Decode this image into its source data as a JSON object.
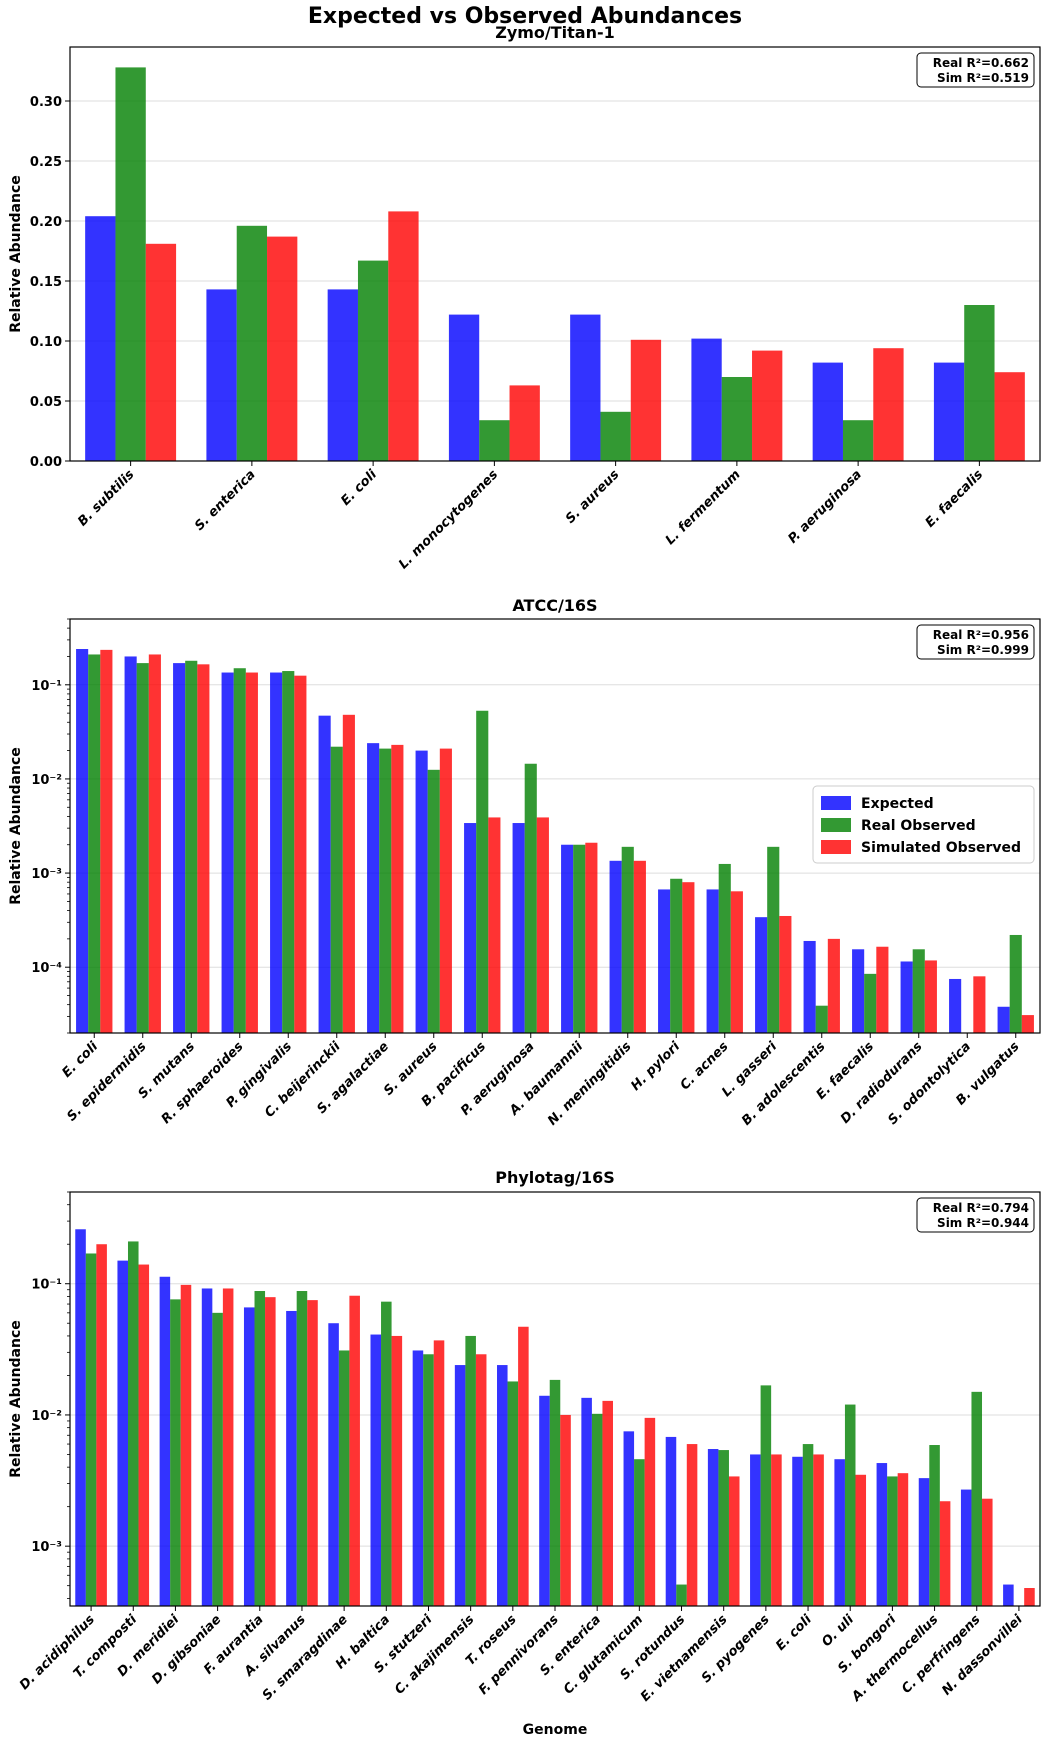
{
  "figure_title": "Expected vs Observed Abundances",
  "x_axis_label": "Genome",
  "legend": {
    "items": [
      {
        "label": "Expected",
        "color": "#0000ff"
      },
      {
        "label": "Real Observed",
        "color": "#008000"
      },
      {
        "label": "Simulated Observed",
        "color": "#ff0000"
      }
    ]
  },
  "chart_data": [
    {
      "type": "bar",
      "title": "Zymo/Titan-1",
      "ylabel": "Relative Abundance",
      "yscale": "linear",
      "ylim": [
        0,
        0.345
      ],
      "yticks": [
        0,
        0.05,
        0.1,
        0.15,
        0.2,
        0.25,
        0.3
      ],
      "ytick_labels": [
        "0.00",
        "0.05",
        "0.10",
        "0.15",
        "0.20",
        "0.25",
        "0.30"
      ],
      "r2_real": "Real R²=0.662",
      "r2_sim": "Sim R²=0.519",
      "categories": [
        "B. subtilis",
        "S. enterica",
        "E. coli",
        "L. monocytogenes",
        "S. aureus",
        "L. fermentum",
        "P. aeruginosa",
        "E. faecalis"
      ],
      "series": [
        {
          "name": "Expected",
          "values": [
            0.204,
            0.143,
            0.143,
            0.122,
            0.122,
            0.102,
            0.082,
            0.082
          ]
        },
        {
          "name": "Real Observed",
          "values": [
            0.328,
            0.196,
            0.167,
            0.034,
            0.041,
            0.07,
            0.034,
            0.13
          ]
        },
        {
          "name": "Simulated Observed",
          "values": [
            0.181,
            0.187,
            0.208,
            0.063,
            0.101,
            0.092,
            0.094,
            0.074
          ]
        }
      ]
    },
    {
      "type": "bar",
      "title": "ATCC/16S",
      "ylabel": "Relative Abundance",
      "yscale": "log",
      "ylim": [
        2e-05,
        0.5
      ],
      "yticks": [
        0.0001,
        0.001,
        0.01,
        0.1
      ],
      "ytick_labels": [
        "10⁻⁴",
        "10⁻³",
        "10⁻²",
        "10⁻¹"
      ],
      "r2_real": "Real R²=0.956",
      "r2_sim": "Sim R²=0.999",
      "categories": [
        "E. coli",
        "S. epidermidis",
        "S. mutans",
        "R. sphaeroides",
        "P. gingivalis",
        "C. beijerinckii",
        "S. agalactiae",
        "S. aureus",
        "B. pacificus",
        "P. aeruginosa",
        "A. baumannii",
        "N. meningitidis",
        "H. pylori",
        "C. acnes",
        "L. gasseri",
        "B. adolescentis",
        "E. faecalis",
        "D. radiodurans",
        "S. odontolytica",
        "B. vulgatus"
      ],
      "series": [
        {
          "name": "Expected",
          "values": [
            0.24,
            0.2,
            0.17,
            0.135,
            0.135,
            0.047,
            0.024,
            0.02,
            0.0034,
            0.0034,
            0.002,
            0.00135,
            0.00067,
            0.00067,
            0.00034,
            0.00019,
            0.000155,
            0.000115,
            7.5e-05,
            3.8e-05
          ]
        },
        {
          "name": "Real Observed",
          "values": [
            0.21,
            0.17,
            0.18,
            0.15,
            0.14,
            0.022,
            0.021,
            0.0125,
            0.053,
            0.0145,
            0.002,
            0.0019,
            0.00087,
            0.00125,
            0.0019,
            3.9e-05,
            8.5e-05,
            0.000155,
            null,
            0.00022
          ]
        },
        {
          "name": "Simulated Observed",
          "values": [
            0.235,
            0.21,
            0.165,
            0.135,
            0.125,
            0.048,
            0.023,
            0.021,
            0.0039,
            0.0039,
            0.0021,
            0.00135,
            0.0008,
            0.00064,
            0.00035,
            0.0002,
            0.000165,
            0.000118,
            8e-05,
            3.1e-05
          ]
        }
      ]
    },
    {
      "type": "bar",
      "title": "Phylotag/16S",
      "ylabel": "Relative Abundance",
      "xlabel": "Genome",
      "yscale": "log",
      "ylim": [
        0.00035,
        0.5
      ],
      "yticks": [
        0.001,
        0.01,
        0.1
      ],
      "ytick_labels": [
        "10⁻³",
        "10⁻²",
        "10⁻¹"
      ],
      "r2_real": "Real R²=0.794",
      "r2_sim": "Sim R²=0.944",
      "categories": [
        "D. acidiphilus",
        "T. composti",
        "D. meridiei",
        "D. gibsoniae",
        "F. aurantia",
        "A. silvanus",
        "S. smaragdinae",
        "H. baltica",
        "S. stutzeri",
        "C. akajimensis",
        "T. roseus",
        "F. pennivorans",
        "S. enterica",
        "C. glutamicum",
        "S. rotundus",
        "E. vietnamensis",
        "S. pyogenes",
        "E. coli",
        "O. uli",
        "S. bongori",
        "A. thermocellus",
        "C. perfringens",
        "N. dassonvillei"
      ],
      "series": [
        {
          "name": "Expected",
          "values": [
            0.26,
            0.15,
            0.113,
            0.092,
            0.066,
            0.062,
            0.05,
            0.041,
            0.031,
            0.024,
            0.024,
            0.014,
            0.0135,
            0.0075,
            0.0068,
            0.0055,
            0.005,
            0.0048,
            0.0046,
            0.0043,
            0.0033,
            0.0027,
            0.00051
          ]
        },
        {
          "name": "Real Observed",
          "values": [
            0.17,
            0.21,
            0.076,
            0.06,
            0.088,
            0.088,
            0.031,
            0.073,
            0.029,
            0.04,
            0.018,
            0.0185,
            0.0102,
            0.0046,
            0.00051,
            0.0054,
            0.0168,
            0.006,
            0.012,
            0.0034,
            0.0059,
            0.015,
            null
          ]
        },
        {
          "name": "Simulated Observed",
          "values": [
            0.2,
            0.14,
            0.098,
            0.092,
            0.079,
            0.075,
            0.081,
            0.04,
            0.037,
            0.029,
            0.047,
            0.01,
            0.0128,
            0.0095,
            0.006,
            0.0034,
            0.005,
            0.005,
            0.0035,
            0.0036,
            0.0022,
            0.0023,
            0.00048
          ]
        }
      ]
    }
  ]
}
